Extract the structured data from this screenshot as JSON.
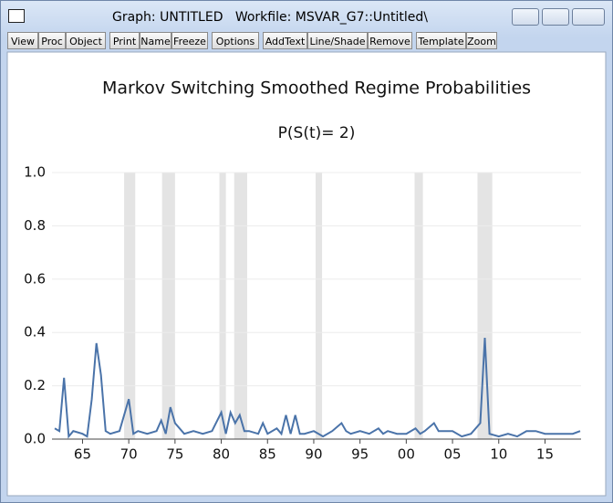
{
  "window": {
    "title": "Graph: UNTITLED   Workfile: MSVAR_G7::Untitled\\"
  },
  "toolbar": {
    "buttons": [
      "View",
      "Proc",
      "Object",
      "Print",
      "Name",
      "Freeze",
      "Options",
      "AddText",
      "Line/Shade",
      "Remove",
      "Template",
      "Zoom"
    ]
  },
  "chart_data": {
    "type": "line",
    "title": "Markov Switching Smoothed Regime Probabilities",
    "subtitle": "P(S(t)= 2)",
    "x": [
      1962,
      1962.5,
      1963,
      1963.5,
      1964,
      1965,
      1965.5,
      1966,
      1966.5,
      1967,
      1967.5,
      1968,
      1969,
      1970,
      1970.5,
      1971,
      1972,
      1973,
      1973.5,
      1974,
      1974.5,
      1975,
      1976,
      1977,
      1978,
      1979,
      1980,
      1980.5,
      1981,
      1981.5,
      1982,
      1982.5,
      1983,
      1984,
      1984.5,
      1985,
      1986,
      1986.5,
      1987,
      1987.5,
      1988,
      1988.5,
      1989,
      1990,
      1991,
      1992,
      1993,
      1993.5,
      1994,
      1995,
      1996,
      1997,
      1997.5,
      1998,
      1999,
      2000,
      2001,
      2001.5,
      2002,
      2003,
      2003.5,
      2004,
      2005,
      2006,
      2007,
      2008,
      2008.5,
      2009,
      2010,
      2011,
      2012,
      2013,
      2014,
      2015,
      2016,
      2017,
      2018,
      2018.8
    ],
    "series": [
      {
        "color": "#4a73a9",
        "values": [
          0.04,
          0.03,
          0.23,
          0.01,
          0.03,
          0.02,
          0.01,
          0.15,
          0.36,
          0.24,
          0.03,
          0.02,
          0.03,
          0.15,
          0.02,
          0.03,
          0.02,
          0.03,
          0.07,
          0.02,
          0.12,
          0.06,
          0.02,
          0.03,
          0.02,
          0.03,
          0.1,
          0.02,
          0.1,
          0.06,
          0.09,
          0.03,
          0.03,
          0.02,
          0.06,
          0.02,
          0.04,
          0.02,
          0.09,
          0.02,
          0.09,
          0.02,
          0.02,
          0.03,
          0.01,
          0.03,
          0.06,
          0.03,
          0.02,
          0.03,
          0.02,
          0.04,
          0.02,
          0.03,
          0.02,
          0.02,
          0.04,
          0.02,
          0.03,
          0.06,
          0.03,
          0.03,
          0.03,
          0.01,
          0.02,
          0.06,
          0.38,
          0.02,
          0.01,
          0.02,
          0.01,
          0.03,
          0.03,
          0.02,
          0.02,
          0.02,
          0.02,
          0.03
        ]
      }
    ],
    "shades": [
      [
        1969.5,
        1970.7
      ],
      [
        1973.6,
        1975.0
      ],
      [
        1979.8,
        1980.5
      ],
      [
        1981.4,
        1982.8
      ],
      [
        1990.2,
        1990.9
      ],
      [
        2000.9,
        2001.8
      ],
      [
        2007.7,
        2009.3
      ]
    ],
    "shade_color": "#e4e4e4",
    "xlim": [
      1961.7,
      2018.9
    ],
    "xticks": [
      {
        "value": 1965,
        "label": "65"
      },
      {
        "value": 1970,
        "label": "70"
      },
      {
        "value": 1975,
        "label": "75"
      },
      {
        "value": 1980,
        "label": "80"
      },
      {
        "value": 1985,
        "label": "85"
      },
      {
        "value": 1990,
        "label": "90"
      },
      {
        "value": 1995,
        "label": "95"
      },
      {
        "value": 2000,
        "label": "00"
      },
      {
        "value": 2005,
        "label": "05"
      },
      {
        "value": 2010,
        "label": "10"
      },
      {
        "value": 2015,
        "label": "15"
      }
    ],
    "ylim": [
      0,
      1
    ],
    "yticks": [
      {
        "value": 0,
        "label": "0.0"
      },
      {
        "value": 0.2,
        "label": "0.2"
      },
      {
        "value": 0.4,
        "label": "0.4"
      },
      {
        "value": 0.6,
        "label": "0.6"
      },
      {
        "value": 0.8,
        "label": "0.8"
      },
      {
        "value": 1,
        "label": "1.0"
      }
    ],
    "grid": true
  }
}
